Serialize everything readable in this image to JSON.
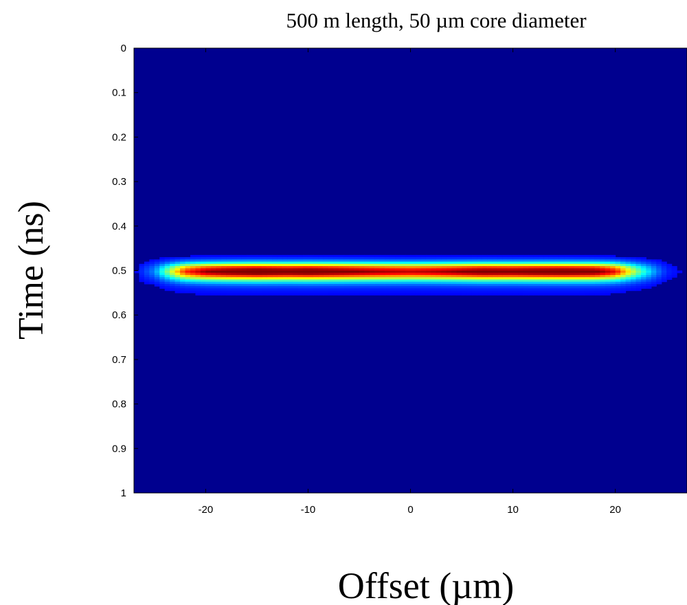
{
  "chart_data": {
    "type": "heatmap",
    "title": "500 m length, 50 µm core diameter",
    "xlabel": "Offset (µm)",
    "ylabel": "Time (ns)",
    "xlim": [
      -27,
      27
    ],
    "ylim": [
      0,
      1
    ],
    "y_inverted": true,
    "x_ticks": [
      -20,
      -10,
      0,
      10,
      20
    ],
    "x_tick_labels": [
      "-20",
      "-10",
      "0",
      "10",
      "20"
    ],
    "y_ticks": [
      0,
      0.1,
      0.2,
      0.3,
      0.4,
      0.5,
      0.6,
      0.7,
      0.8,
      0.9,
      1
    ],
    "y_tick_labels": [
      "0",
      "0.1",
      "0.2",
      "0.3",
      "0.4",
      "0.5",
      "0.6",
      "0.7",
      "0.8",
      "0.9",
      "1"
    ],
    "colormap": "jet",
    "background_color": "#00008f",
    "pulse": {
      "center_time_ns": 0.5,
      "intense_offset_range": [
        -21,
        21
      ],
      "faint_offset_range": [
        -25,
        25
      ],
      "time_halfwidth_ns": 0.012,
      "tail_halfwidth_ns": 0.03,
      "amplitude_profile": [
        [
          -25,
          0.15
        ],
        [
          -23.5,
          0.45
        ],
        [
          -22,
          0.75
        ],
        [
          -20,
          0.9
        ],
        [
          -18,
          0.96
        ],
        [
          -15,
          1.0
        ],
        [
          -12,
          0.97
        ],
        [
          -10,
          0.99
        ],
        [
          -7,
          0.95
        ],
        [
          -4,
          0.9
        ],
        [
          -2,
          0.87
        ],
        [
          0,
          0.85
        ],
        [
          2,
          0.87
        ],
        [
          4,
          0.9
        ],
        [
          7,
          0.96
        ],
        [
          10,
          0.95
        ],
        [
          12,
          0.97
        ],
        [
          15,
          0.98
        ],
        [
          18,
          0.95
        ],
        [
          20,
          0.8
        ],
        [
          21,
          0.6
        ],
        [
          22.5,
          0.35
        ],
        [
          24,
          0.15
        ],
        [
          25,
          0.05
        ]
      ]
    }
  }
}
